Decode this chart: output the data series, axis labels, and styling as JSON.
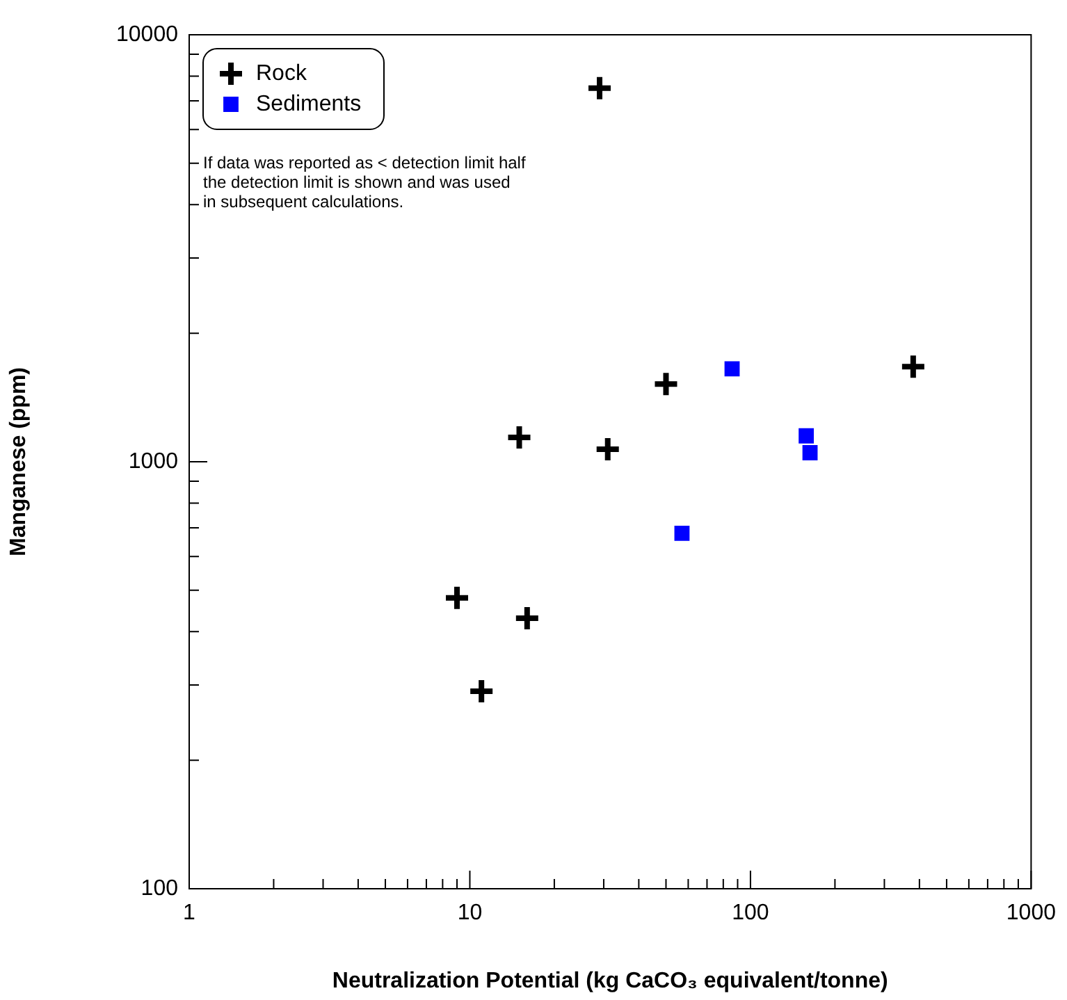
{
  "chart_data": {
    "type": "scatter",
    "xlabel": "Neutralization Potential (kg CaCO₃ equivalent/tonne)",
    "ylabel": "Manganese (ppm)",
    "log": "xy",
    "grid": false,
    "legend": "top left",
    "xlim": [
      1,
      1000
    ],
    "ylim": [
      100,
      10000
    ],
    "xticks": [
      1,
      {
        "value": 2,
        "label": null
      },
      {
        "value": 3,
        "label": null
      },
      {
        "value": 4,
        "label": null
      },
      {
        "value": 5,
        "label": null
      },
      {
        "value": 6,
        "label": null
      },
      {
        "value": 7,
        "label": null
      },
      {
        "value": 8,
        "label": null
      },
      {
        "value": 9,
        "label": null
      },
      10,
      {
        "value": 20,
        "label": null
      },
      {
        "value": 30,
        "label": null
      },
      {
        "value": 40,
        "label": null
      },
      {
        "value": 50,
        "label": null
      },
      {
        "value": 60,
        "label": null
      },
      {
        "value": 70,
        "label": null
      },
      {
        "value": 80,
        "label": null
      },
      {
        "value": 90,
        "label": null
      },
      100,
      {
        "value": 200,
        "label": null
      },
      {
        "value": 300,
        "label": null
      },
      {
        "value": 400,
        "label": null
      },
      {
        "value": 500,
        "label": null
      },
      {
        "value": 600,
        "label": null
      },
      {
        "value": 700,
        "label": null
      },
      {
        "value": 800,
        "label": null
      },
      {
        "value": 900,
        "label": null
      },
      1000
    ],
    "yticks": [
      100,
      {
        "value": 200,
        "label": null
      },
      {
        "value": 300,
        "label": null
      },
      {
        "value": 400,
        "label": null
      },
      {
        "value": 500,
        "label": null
      },
      {
        "value": 600,
        "label": null
      },
      {
        "value": 700,
        "label": null
      },
      {
        "value": 800,
        "label": null
      },
      {
        "value": 900,
        "label": null
      },
      1000,
      {
        "value": 2000,
        "label": null
      },
      {
        "value": 3000,
        "label": null
      },
      {
        "value": 4000,
        "label": null
      },
      {
        "value": 5000,
        "label": null
      },
      {
        "value": 6000,
        "label": null
      },
      {
        "value": 7000,
        "label": null
      },
      {
        "value": 8000,
        "label": null
      },
      {
        "value": 9000,
        "label": null
      },
      10000
    ],
    "series": [
      {
        "name": "Rock",
        "color": "#000000",
        "marker": "cross",
        "x": [
          29,
          50,
          15,
          31,
          380,
          9,
          16,
          11
        ],
        "values": [
          7500,
          1520,
          1140,
          1070,
          1670,
          480,
          430,
          290
        ]
      },
      {
        "name": "Sediments",
        "color": "#0000ff",
        "marker": "square",
        "x": [
          86,
          57,
          158,
          163
        ],
        "values": [
          1650,
          680,
          1150,
          1050
        ]
      }
    ],
    "annotations": [
      "If data was reported as < detection limit half the detection limit is shown and was used in subsequent calculations."
    ]
  }
}
